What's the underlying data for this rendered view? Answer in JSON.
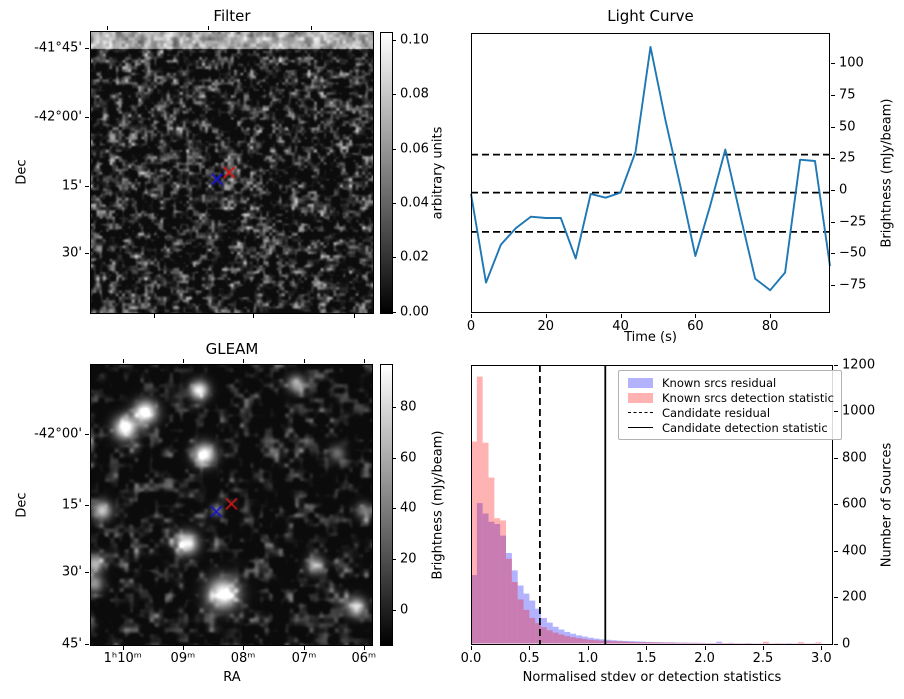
{
  "figure": {
    "background": "#ffffff"
  },
  "chart_data": [
    {
      "id": "filter",
      "type": "heatmap",
      "title": "Filter",
      "xlabel": "",
      "ylabel": "Dec",
      "colormap": "gray",
      "yticks": {
        "labels": [
          "-41°45'",
          "-42°00'",
          "15'",
          "30'"
        ],
        "pos": [
          0.057,
          0.302,
          0.548,
          0.786
        ]
      },
      "xtick_pos_top": [
        0.057,
        0.416,
        0.779
      ],
      "xtick_pos_bottom": [
        0.225,
        0.575,
        0.932
      ],
      "colorbar": {
        "label": "arbitrary units",
        "range": [
          0.0,
          0.1
        ],
        "ticks": [
          "0.10",
          "0.08",
          "0.06",
          "0.04",
          "0.02",
          "0.00"
        ],
        "tick_pos": [
          0.025,
          0.219,
          0.413,
          0.607,
          0.801,
          0.995
        ]
      },
      "bright_band_top_fraction": 0.06,
      "faint_sources": [
        {
          "fx": 0.497,
          "fy": 0.487,
          "amp": 75,
          "sigma": 4
        }
      ],
      "markers": [
        {
          "shape": "x",
          "name": "known-source",
          "color": "#1414cc",
          "fx": 0.447,
          "fy": 0.524
        },
        {
          "shape": "x",
          "name": "candidate",
          "color": "#d01818",
          "fx": 0.49,
          "fy": 0.5
        }
      ]
    },
    {
      "id": "lightcurve",
      "type": "line",
      "title": "Light Curve",
      "xlabel": "Time (s)",
      "ylabel": "Brightness (mJy/beam)",
      "line_color": "#1f77b4",
      "xlim": [
        0,
        96
      ],
      "ylim": [
        -97,
        124
      ],
      "xticks": [
        0,
        20,
        40,
        60,
        80
      ],
      "yticks": [
        100,
        75,
        50,
        25,
        0,
        -25,
        -50,
        -75
      ],
      "ytick_labels": [
        "100",
        "75",
        "50",
        "25",
        "0",
        "−25",
        "−50",
        "−75"
      ],
      "x": [
        0,
        4,
        8,
        12,
        16,
        20,
        24,
        28,
        32,
        36,
        40,
        44,
        48,
        52,
        56,
        60,
        64,
        68,
        72,
        76,
        80,
        84,
        88,
        92,
        96
      ],
      "y": [
        -3,
        -73,
        -43,
        -30,
        -21,
        -22,
        -22,
        -54,
        -3,
        -6,
        -2,
        30,
        113,
        55,
        3,
        -52,
        -12,
        32,
        -20,
        -70,
        -79,
        -65,
        24,
        23,
        -60
      ],
      "hlines": {
        "values": [
          28,
          -2,
          -33
        ],
        "style": "dashed",
        "color": "#000000"
      },
      "grid": false
    },
    {
      "id": "gleam",
      "type": "heatmap",
      "title": "GLEAM",
      "xlabel": "RA",
      "ylabel": "Dec",
      "colormap": "gray",
      "xticks": {
        "labels": [
          "1ʰ10ᵐ",
          "09ᵐ",
          "08ᵐ",
          "07ᵐ",
          "06ᵐ"
        ],
        "pos": [
          0.113,
          0.327,
          0.541,
          0.758,
          0.971
        ]
      },
      "yticks": {
        "labels": [
          "-42°00'",
          "15'",
          "30'",
          "45'"
        ],
        "pos": [
          0.246,
          0.5,
          0.738,
          0.996
        ]
      },
      "colorbar": {
        "label": "Brightness (mJy/beam)",
        "range": [
          -14,
          96
        ],
        "ticks": [
          "80",
          "60",
          "40",
          "20",
          "0"
        ],
        "tick_pos": [
          0.149,
          0.3305,
          0.512,
          0.6935,
          0.875
        ]
      },
      "sources": [
        {
          "fx": 0.384,
          "fy": 0.089,
          "amp": 235,
          "sigma": 6.5
        },
        {
          "fx": 0.192,
          "fy": 0.167,
          "amp": 255,
          "sigma": 8
        },
        {
          "fx": 0.121,
          "fy": 0.223,
          "amp": 255,
          "sigma": 8
        },
        {
          "fx": 0.728,
          "fy": 0.065,
          "amp": 150,
          "sigma": 6
        },
        {
          "fx": 0.402,
          "fy": 0.318,
          "amp": 255,
          "sigma": 7.5
        },
        {
          "fx": 0.875,
          "fy": 0.314,
          "amp": 100,
          "sigma": 5.5
        },
        {
          "fx": 0.038,
          "fy": 0.518,
          "amp": 190,
          "sigma": 6.5
        },
        {
          "fx": 0.968,
          "fy": 0.518,
          "amp": 110,
          "sigma": 5.5
        },
        {
          "fx": 0.34,
          "fy": 0.635,
          "amp": 235,
          "sigma": 7.5
        },
        {
          "fx": 0.011,
          "fy": 0.708,
          "amp": 170,
          "sigma": 6.5
        },
        {
          "fx": 0.011,
          "fy": 0.78,
          "amp": 140,
          "sigma": 6
        },
        {
          "fx": 0.797,
          "fy": 0.714,
          "amp": 160,
          "sigma": 6
        },
        {
          "fx": 0.469,
          "fy": 0.815,
          "amp": 255,
          "sigma": 10.5
        },
        {
          "fx": 0.943,
          "fy": 0.863,
          "amp": 200,
          "sigma": 6.5
        },
        {
          "fx": 0.445,
          "fy": 0.52,
          "amp": 85,
          "sigma": 4.5
        }
      ],
      "markers": [
        {
          "shape": "x",
          "name": "known-source",
          "color": "#1414cc",
          "fx": 0.446,
          "fy": 0.524
        },
        {
          "shape": "x",
          "name": "candidate",
          "color": "#d01818",
          "fx": 0.5,
          "fy": 0.496
        }
      ]
    },
    {
      "id": "histogram",
      "type": "bar",
      "title": "",
      "xlabel": "Normalised stdev or detection statistics",
      "ylabel": "Number of Sources",
      "xlim": [
        0,
        3.1
      ],
      "ylim": [
        0,
        1200
      ],
      "bin_width": 0.05,
      "bin_start": 0,
      "xtick_values": [
        0.0,
        0.5,
        1.0,
        1.5,
        2.0,
        2.5,
        3.0
      ],
      "xticks": [
        "0.0",
        "0.5",
        "1.0",
        "1.5",
        "2.0",
        "2.5",
        "3.0"
      ],
      "yticks": [
        0,
        200,
        400,
        600,
        800,
        1000,
        1200
      ],
      "series": [
        {
          "name": "Known srcs residual",
          "color": "rgba(0,0,255,0.3)",
          "values": [
            295,
            605,
            560,
            525,
            515,
            465,
            390,
            315,
            250,
            215,
            185,
            150,
            110,
            90,
            72,
            60,
            50,
            42,
            35,
            30,
            25,
            21,
            18,
            16,
            14,
            12,
            11,
            10,
            9,
            8,
            7,
            6,
            6,
            5,
            5,
            4,
            4,
            3,
            3,
            3,
            2,
            2,
            8,
            2,
            3,
            1,
            1,
            2,
            1,
            1,
            2,
            1,
            1,
            1,
            2,
            1,
            1,
            1,
            1,
            1
          ]
        },
        {
          "name": "Known srcs detection statistic",
          "color": "rgba(255,0,0,0.3)",
          "values": [
            870,
            1150,
            865,
            715,
            540,
            530,
            365,
            265,
            190,
            145,
            110,
            88,
            70,
            57,
            47,
            39,
            32,
            27,
            23,
            19,
            16,
            14,
            12,
            11,
            10,
            9,
            8,
            7,
            6,
            6,
            5,
            5,
            4,
            4,
            4,
            3,
            3,
            3,
            3,
            2,
            2,
            2,
            2,
            2,
            2,
            2,
            1,
            2,
            1,
            1,
            8,
            1,
            2,
            1,
            1,
            1,
            6,
            1,
            1,
            5
          ]
        }
      ],
      "vlines": [
        {
          "name": "Candidate residual",
          "x": 0.59,
          "style": "dashed",
          "color": "#000000"
        },
        {
          "name": "Candidate detection statistic",
          "x": 1.15,
          "style": "solid",
          "color": "#000000"
        }
      ],
      "legend": {
        "position": "upper right",
        "items": [
          {
            "label": "Known srcs residual",
            "swatch": "patch",
            "color": "rgba(0,0,255,0.3)"
          },
          {
            "label": "Known srcs detection statistic",
            "swatch": "patch",
            "color": "rgba(255,0,0,0.3)"
          },
          {
            "label": "Candidate residual",
            "swatch": "dashed-line",
            "color": "#000000"
          },
          {
            "label": "Candidate detection statistic",
            "swatch": "solid-line",
            "color": "#000000"
          }
        ]
      }
    }
  ]
}
